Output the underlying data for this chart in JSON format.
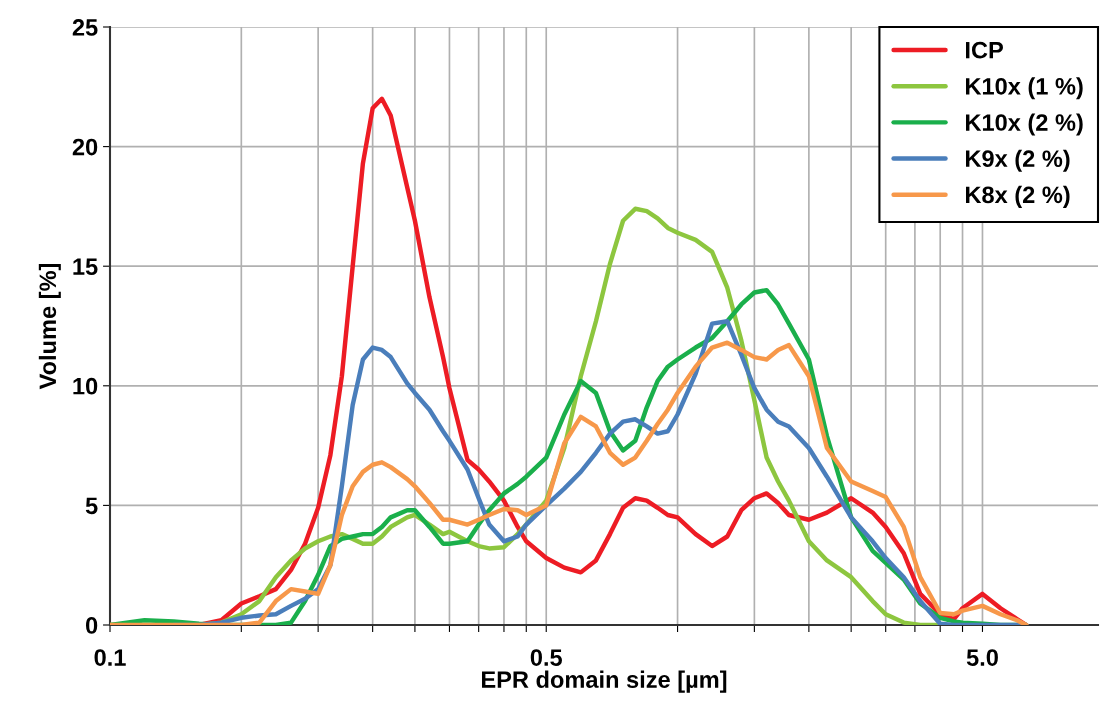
{
  "chart_data": {
    "type": "line",
    "xlabel": "EPR domain size [µm]",
    "ylabel": "Volume [%]",
    "log": "x",
    "x": [
      0.05,
      0.06,
      0.07,
      0.08,
      0.09,
      0.1,
      0.11,
      0.12,
      0.13,
      0.14,
      0.15,
      0.16,
      0.17,
      0.18,
      0.19,
      0.2,
      0.21,
      0.22,
      0.24,
      0.25,
      0.27,
      0.29,
      0.3,
      0.33,
      0.35,
      0.37,
      0.4,
      0.43,
      0.45,
      0.5,
      0.55,
      0.6,
      0.65,
      0.7,
      0.75,
      0.8,
      0.85,
      0.9,
      0.95,
      1.0,
      1.1,
      1.2,
      1.3,
      1.4,
      1.5,
      1.6,
      1.7,
      1.8,
      2.0,
      2.2,
      2.5,
      2.8,
      3.0,
      3.3,
      3.6,
      4.0,
      4.3,
      4.5,
      5.0,
      5.5,
      6.0,
      6.3
    ],
    "series": [
      {
        "name": "ICP",
        "color": "#ed1c24",
        "values": [
          null,
          null,
          0,
          0,
          0.2,
          0.9,
          1.2,
          1.5,
          2.3,
          3.4,
          4.9,
          7.1,
          10.4,
          15,
          19.3,
          21.6,
          22.0,
          21.3,
          18.3,
          16.9,
          13.7,
          11.2,
          9.9,
          6.9,
          6.5,
          6.0,
          5.2,
          4.1,
          3.5,
          2.8,
          2.4,
          2.2,
          2.7,
          3.8,
          4.9,
          5.3,
          5.2,
          4.9,
          4.6,
          4.5,
          3.8,
          3.3,
          3.7,
          4.8,
          5.3,
          5.5,
          5.1,
          4.6,
          4.4,
          4.7,
          5.3,
          4.7,
          4.1,
          3.0,
          1.3,
          0.45,
          0.25,
          0.7,
          1.3,
          0.7,
          0.25,
          0
        ]
      },
      {
        "name": "K10x (1 %)",
        "color": "#8dc63f",
        "values": [
          0,
          0,
          0,
          0,
          0.1,
          0.45,
          1.0,
          2.0,
          2.7,
          3.2,
          3.5,
          3.7,
          3.8,
          3.6,
          3.4,
          3.4,
          3.7,
          4.1,
          4.5,
          4.6,
          4.2,
          3.8,
          3.9,
          3.5,
          3.3,
          3.2,
          3.25,
          3.8,
          4.2,
          5.2,
          7.4,
          10.4,
          12.7,
          15.1,
          16.9,
          17.4,
          17.3,
          17.0,
          16.6,
          16.4,
          16.1,
          15.6,
          14.1,
          11.9,
          9.4,
          7.0,
          6.0,
          5.2,
          3.5,
          2.7,
          2.0,
          1.0,
          0.45,
          0.1,
          0,
          0,
          null,
          null,
          null,
          null,
          null,
          null
        ]
      },
      {
        "name": "K10x (2 %)",
        "color": "#1aaf4b",
        "values": [
          0,
          0.2,
          0.15,
          0.05,
          0,
          0,
          0,
          0,
          0.1,
          1.0,
          2.1,
          3.3,
          3.6,
          3.7,
          3.8,
          3.8,
          4.1,
          4.5,
          4.8,
          4.8,
          4.1,
          3.4,
          3.4,
          3.5,
          4.2,
          4.8,
          5.5,
          5.9,
          6.2,
          7.0,
          8.8,
          10.2,
          9.7,
          8.1,
          7.3,
          7.7,
          9.1,
          10.2,
          10.8,
          11.1,
          11.6,
          12.0,
          12.7,
          13.4,
          13.9,
          14.0,
          13.4,
          12.6,
          11.1,
          7.9,
          4.5,
          3.1,
          2.6,
          1.9,
          0.9,
          0.3,
          0.15,
          0.1,
          0.05,
          0,
          0,
          0
        ]
      },
      {
        "name": "K9x (2 %)",
        "color": "#4a7ebb",
        "values": [
          null,
          null,
          0,
          0,
          0.1,
          0.3,
          0.4,
          0.45,
          0.8,
          1.1,
          1.5,
          2.5,
          5.8,
          9.2,
          11.1,
          11.6,
          11.5,
          11.2,
          10.1,
          9.7,
          9.0,
          8.1,
          7.7,
          6.5,
          5.3,
          4.2,
          3.5,
          3.7,
          4.2,
          5.0,
          5.7,
          6.4,
          7.2,
          8.0,
          8.5,
          8.6,
          8.3,
          8.0,
          8.1,
          8.8,
          10.5,
          12.6,
          12.7,
          11.3,
          9.9,
          9.0,
          8.5,
          8.3,
          7.4,
          6.2,
          4.5,
          3.5,
          2.8,
          2.0,
          1.0,
          0.05,
          0,
          0,
          0,
          0,
          0,
          0
        ]
      },
      {
        "name": "K8x (2 %)",
        "color": "#f7984a",
        "values": [
          0,
          0,
          0,
          0,
          0,
          0,
          0.1,
          1.0,
          1.5,
          1.4,
          1.3,
          2.5,
          4.6,
          5.8,
          6.4,
          6.7,
          6.8,
          6.6,
          6.1,
          5.8,
          5.1,
          4.4,
          4.4,
          4.2,
          4.4,
          4.6,
          4.85,
          4.8,
          4.6,
          5.0,
          7.6,
          8.7,
          8.3,
          7.2,
          6.7,
          7.0,
          7.7,
          8.4,
          9.0,
          9.7,
          10.8,
          11.6,
          11.8,
          11.5,
          11.2,
          11.1,
          11.5,
          11.7,
          10.4,
          7.4,
          6.0,
          5.6,
          5.35,
          4.1,
          2.0,
          0.5,
          0.45,
          0.6,
          0.8,
          0.45,
          0.2,
          0
        ]
      }
    ],
    "xlim": [
      0.05,
      9.2
    ],
    "xticks": [
      {
        "value": 0.05,
        "label": "0.1"
      },
      {
        "value": 0.1,
        "label": null
      },
      {
        "value": 0.15,
        "label": null
      },
      {
        "value": 0.2,
        "label": null
      },
      {
        "value": 0.25,
        "label": null
      },
      {
        "value": 0.3,
        "label": null
      },
      {
        "value": 0.35,
        "label": null
      },
      {
        "value": 0.4,
        "label": null
      },
      {
        "value": 0.45,
        "label": null
      },
      0.5,
      {
        "value": 1.0,
        "label": null
      },
      {
        "value": 1.5,
        "label": null
      },
      {
        "value": 2.0,
        "label": null
      },
      {
        "value": 2.5,
        "label": null
      },
      {
        "value": 3.0,
        "label": null
      },
      {
        "value": 3.5,
        "label": null
      },
      {
        "value": 4.0,
        "label": null
      },
      {
        "value": 4.5,
        "label": null
      },
      {
        "value": 5,
        "label": "5.0"
      }
    ],
    "ylim": [
      0,
      25
    ],
    "yticks": [
      0,
      5,
      10,
      15,
      20,
      25
    ],
    "grid": true,
    "legend": "top right",
    "marker": "none",
    "line_style": "solid"
  }
}
